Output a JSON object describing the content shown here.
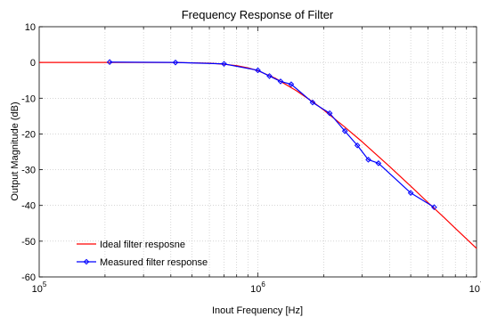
{
  "chart_data": {
    "type": "line",
    "title": "Frequency Response of Filter",
    "xlabel": "Inout Frequency [Hz]",
    "ylabel": "Output Magnitude (dB)",
    "xscale": "log",
    "xlim": [
      100000,
      10000000
    ],
    "ylim": [
      -60,
      10
    ],
    "x_ticks": [
      {
        "value": 100000,
        "base": "10",
        "exp": "5"
      },
      {
        "value": 1000000,
        "base": "10",
        "exp": "6"
      },
      {
        "value": 10000000,
        "base": "10",
        "exp": "7"
      }
    ],
    "y_ticks": [
      10,
      0,
      -10,
      -20,
      -30,
      -40,
      -50,
      -60
    ],
    "grid": true,
    "legend_position": "bottom-left",
    "series": [
      {
        "name": "Ideal filter resposne",
        "color": "#ff0000",
        "marker": "none",
        "x": [
          100000,
          200000,
          400000,
          500000,
          600000,
          700000,
          800000,
          900000,
          1000000,
          1200000,
          1500000,
          1800000,
          2000000,
          2500000,
          3000000,
          4000000,
          5000000,
          6000000,
          7000000,
          8000000,
          10000000
        ],
        "y": [
          0,
          0,
          0,
          -0.1,
          -0.2,
          -0.5,
          -0.9,
          -1.5,
          -2.3,
          -4.4,
          -7.9,
          -11.2,
          -13.3,
          -18.1,
          -22.2,
          -29.1,
          -34.6,
          -39.2,
          -43.0,
          -46.4,
          -52.0
        ]
      },
      {
        "name": "Measured filter response",
        "color": "#0000ff",
        "marker": "diamond",
        "x": [
          210000,
          420000,
          700000,
          1000000,
          1130000,
          1270000,
          1420000,
          1780000,
          2130000,
          2500000,
          2850000,
          3200000,
          3560000,
          5000000,
          6400000
        ],
        "y": [
          0.1,
          0,
          -0.4,
          -2.2,
          -3.8,
          -5.3,
          -6.1,
          -11.2,
          -14.2,
          -19.2,
          -23.2,
          -27.2,
          -28.2,
          -36.5,
          -40.5
        ]
      }
    ]
  }
}
